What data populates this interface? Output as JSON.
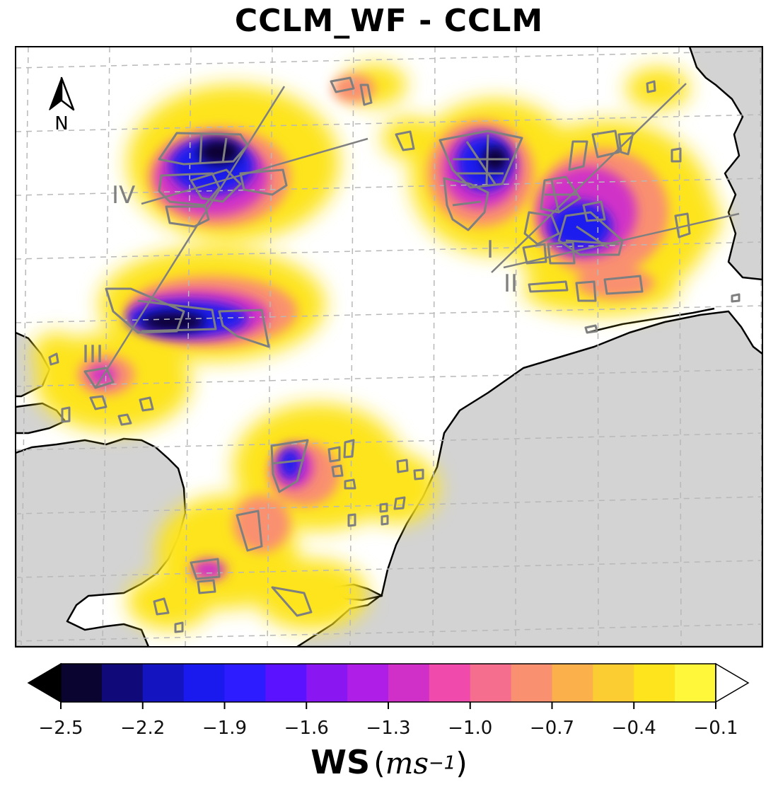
{
  "title": "CCLM_WF - CCLM",
  "north_arrow": {
    "label": "N",
    "icon": "north-arrow-icon"
  },
  "region_labels": [
    "I",
    "II",
    "III",
    "IV"
  ],
  "colorbar": {
    "variable": "WS",
    "unit_base": "ms",
    "unit_exp": "−1",
    "open_paren": "(",
    "close_paren": ")",
    "ticks": [
      "−2.5",
      "−2.2",
      "−1.9",
      "−1.6",
      "−1.3",
      "−1.0",
      "−0.7",
      "−0.4",
      "−0.1"
    ],
    "tick_values": [
      -2.5,
      -2.2,
      -1.9,
      -1.6,
      -1.3,
      -1.0,
      -0.7,
      -0.4,
      -0.1
    ],
    "bin_step": 0.15,
    "under_color": "#000000",
    "over_color": "#ffffff",
    "bin_colors": [
      "#0a0430",
      "#10097a",
      "#1414c0",
      "#1a1aee",
      "#2d1cff",
      "#5a12ff",
      "#8a16f2",
      "#ae1ee6",
      "#d030c8",
      "#f04aac",
      "#f56e8e",
      "#f99070",
      "#fbb04c",
      "#fccc33",
      "#fde41c",
      "#fff73a"
    ]
  },
  "colors": {
    "land": "#d3d3d3",
    "sea": "#ffffff",
    "coast": "#000000",
    "windfarm_outline": "#7f7f7f",
    "transect": "#808080",
    "grid": "#b8b8b8"
  }
}
